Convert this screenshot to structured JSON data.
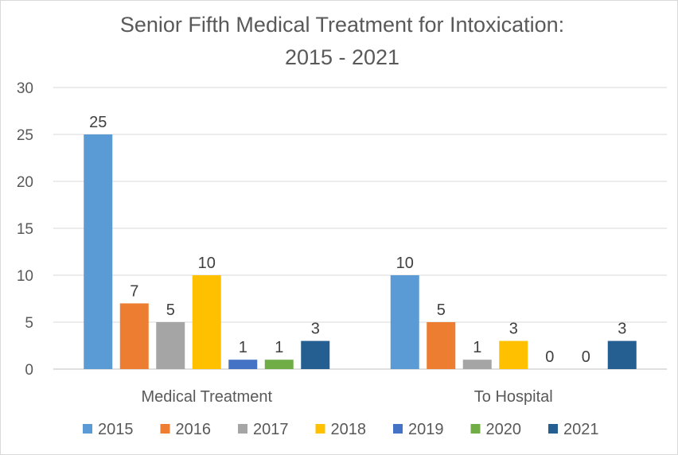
{
  "chart_data": {
    "type": "bar",
    "title_line1": "Senior Fifth Medical Treatment for Intoxication:",
    "title_line2": "2015 - 2021",
    "categories": [
      "Medical Treatment",
      "To Hospital"
    ],
    "ylim": [
      0,
      30
    ],
    "yticks": [
      0,
      5,
      10,
      15,
      20,
      25,
      30
    ],
    "grid": true,
    "legend_position": "bottom",
    "series": [
      {
        "name": "2015",
        "color": "#5B9BD5",
        "values": [
          25,
          10
        ]
      },
      {
        "name": "2016",
        "color": "#ED7D31",
        "values": [
          7,
          5
        ]
      },
      {
        "name": "2017",
        "color": "#A5A5A5",
        "values": [
          5,
          1
        ]
      },
      {
        "name": "2018",
        "color": "#FFC000",
        "values": [
          10,
          3
        ]
      },
      {
        "name": "2019",
        "color": "#4472C4",
        "values": [
          1,
          0
        ]
      },
      {
        "name": "2020",
        "color": "#70AD47",
        "values": [
          1,
          0
        ]
      },
      {
        "name": "2021",
        "color": "#255E91",
        "values": [
          3,
          3
        ]
      }
    ]
  }
}
